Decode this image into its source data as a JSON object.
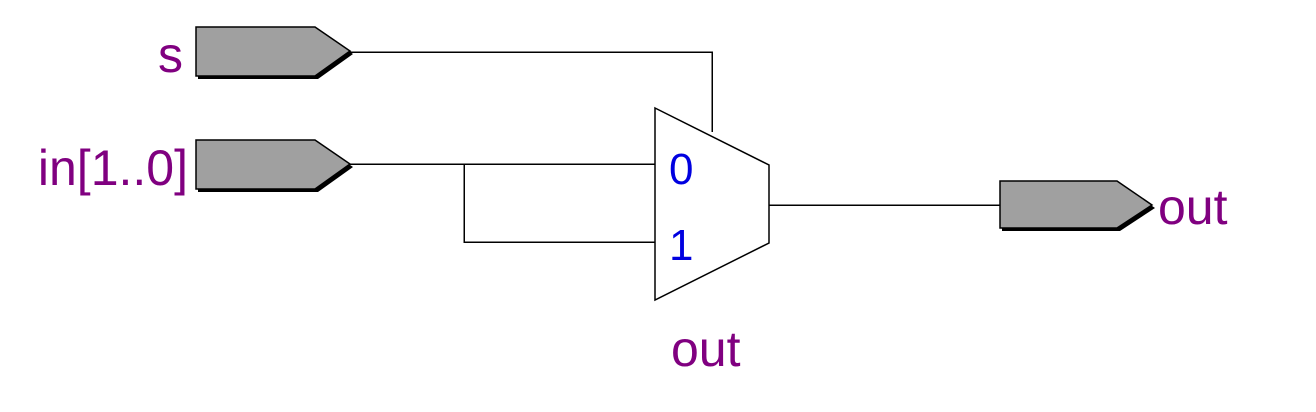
{
  "colors": {
    "port_fill": "#a0a0a0",
    "port_label": "#800080",
    "pin_label": "#0000e0",
    "wire": "#000000",
    "background": "#ffffff"
  },
  "ports": {
    "s": "s",
    "in": "in[1..0]",
    "out": "out"
  },
  "mux": {
    "input0": "0",
    "input1": "1",
    "instance_name": "out"
  }
}
